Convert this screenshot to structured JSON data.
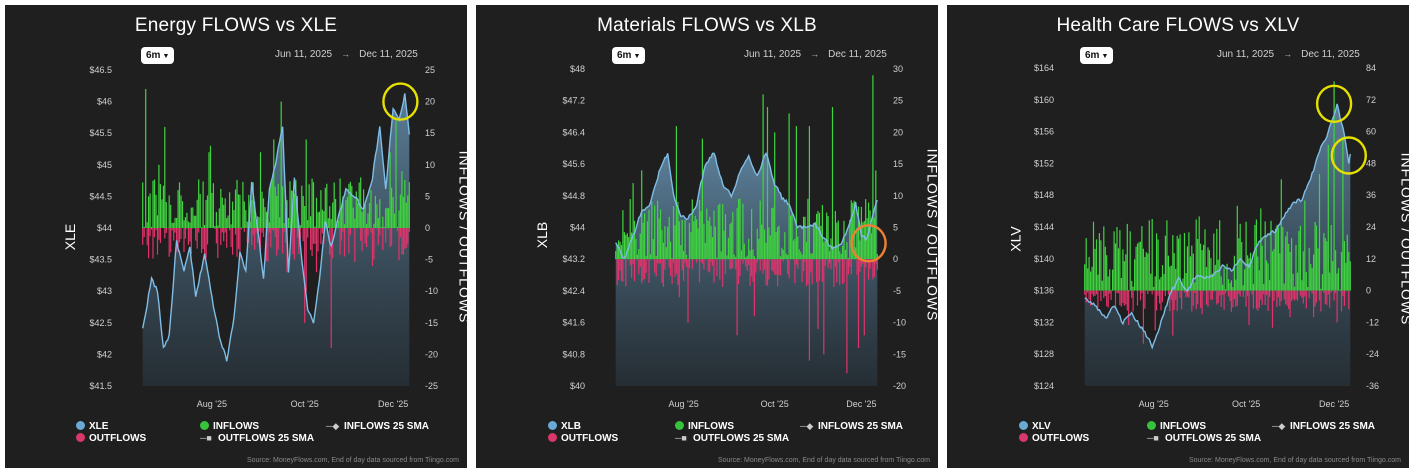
{
  "panels": [
    {
      "title": "Energy FLOWS vs XLE",
      "range_label": "6m",
      "date_start": "Jun 11, 2025",
      "date_end": "Dec 11, 2025",
      "ticker": "XLE",
      "right_axis_title": "INFLOWS / OUTFLOWS",
      "legend": {
        "price": "XLE",
        "outflows": "OUTFLOWS",
        "inflows": "INFLOWS",
        "outflows_sma": "OUTFLOWS 25 SMA",
        "inflows_sma": "INFLOWS 25 SMA"
      },
      "source": "Source: MoneyFlows.com, End of day data sourced from Tiingo.com",
      "highlight_color": "#e6e000",
      "chart_data": {
        "type": "bar+area",
        "title": "Energy FLOWS vs XLE",
        "left_axis": {
          "label": "XLE",
          "range": [
            41.5,
            46.5
          ],
          "ticks": [
            "$41.5",
            "$42",
            "$42.5",
            "$43",
            "$43.5",
            "$44",
            "$44.5",
            "$45",
            "$45.5",
            "$46",
            "$46.5"
          ]
        },
        "right_axis": {
          "label": "INFLOWS / OUTFLOWS",
          "range": [
            -25,
            25
          ],
          "ticks": [
            "-25",
            "-20",
            "-15",
            "-10",
            "-5",
            "0",
            "5",
            "10",
            "15",
            "20",
            "25"
          ]
        },
        "x_ticks": [
          "Aug '25",
          "Oct '25",
          "Dec '25"
        ],
        "x_tick_index": [
          47,
          110,
          170
        ],
        "n_days": 182,
        "price_anchors": [
          [
            0,
            42.4
          ],
          [
            6,
            43.2
          ],
          [
            10,
            43.0
          ],
          [
            14,
            42.1
          ],
          [
            18,
            42.3
          ],
          [
            23,
            43.8
          ],
          [
            28,
            43.3
          ],
          [
            32,
            43.7
          ],
          [
            36,
            42.9
          ],
          [
            42,
            43.6
          ],
          [
            47,
            42.9
          ],
          [
            52,
            42.3
          ],
          [
            57,
            41.9
          ],
          [
            62,
            42.6
          ],
          [
            66,
            43.6
          ],
          [
            70,
            43.3
          ],
          [
            74,
            44.7
          ],
          [
            78,
            44.0
          ],
          [
            82,
            43.2
          ],
          [
            86,
            44.6
          ],
          [
            90,
            45.0
          ],
          [
            95,
            45.6
          ],
          [
            99,
            43.3
          ],
          [
            103,
            44.8
          ],
          [
            108,
            43.5
          ],
          [
            112,
            42.7
          ],
          [
            116,
            42.5
          ],
          [
            120,
            43.2
          ],
          [
            124,
            44.1
          ],
          [
            128,
            43.7
          ],
          [
            132,
            44.1
          ],
          [
            138,
            44.6
          ],
          [
            144,
            44.5
          ],
          [
            150,
            44.3
          ],
          [
            156,
            44.8
          ],
          [
            161,
            45.6
          ],
          [
            165,
            44.6
          ],
          [
            170,
            45.9
          ],
          [
            174,
            45.7
          ],
          [
            178,
            46.1
          ],
          [
            181,
            45.5
          ]
        ],
        "inflow_spikes": [
          [
            2,
            22
          ],
          [
            4,
            5
          ],
          [
            11,
            10
          ],
          [
            15,
            16
          ],
          [
            24,
            6
          ],
          [
            45,
            12
          ],
          [
            46,
            13
          ],
          [
            80,
            12
          ],
          [
            89,
            14
          ],
          [
            94,
            20
          ],
          [
            111,
            14
          ],
          [
            121,
            6
          ],
          [
            140,
            7
          ],
          [
            148,
            8
          ],
          [
            155,
            6
          ],
          [
            168,
            12
          ],
          [
            172,
            17
          ],
          [
            176,
            9
          ]
        ],
        "outflow_spikes": [
          [
            36,
            -2
          ],
          [
            60,
            -3
          ],
          [
            98,
            -7
          ],
          [
            110,
            -15
          ],
          [
            111,
            -10
          ],
          [
            118,
            -7
          ],
          [
            128,
            -19
          ],
          [
            140,
            -4
          ],
          [
            156,
            -6
          ],
          [
            168,
            -3
          ]
        ],
        "highlights": [
          {
            "day": 175,
            "value": 46.0,
            "color": "#e6e000"
          }
        ]
      }
    },
    {
      "title": "Materials FLOWS vs XLB",
      "range_label": "6m",
      "date_start": "Jun 11, 2025",
      "date_end": "Dec 11, 2025",
      "ticker": "XLB",
      "right_axis_title": "INFLOWS / OUTFLOWS",
      "legend": {
        "price": "XLB",
        "outflows": "OUTFLOWS",
        "inflows": "INFLOWS",
        "outflows_sma": "OUTFLOWS 25 SMA",
        "inflows_sma": "INFLOWS 25 SMA"
      },
      "source": "Source: MoneyFlows.com, End of day data sourced from Tiingo.com",
      "highlight_color": "#ee8033",
      "chart_data": {
        "type": "bar+area",
        "title": "Materials FLOWS vs XLB",
        "left_axis": {
          "label": "XLB",
          "range": [
            40,
            48
          ],
          "ticks": [
            "$40",
            "$40.8",
            "$41.6",
            "$42.4",
            "$43.2",
            "$44",
            "$44.8",
            "$45.6",
            "$46.4",
            "$47.2",
            "$48"
          ]
        },
        "right_axis": {
          "label": "INFLOWS / OUTFLOWS",
          "range": [
            -20,
            30
          ],
          "ticks": [
            "-20",
            "-15",
            "-10",
            "-5",
            "0",
            "5",
            "10",
            "15",
            "20",
            "25",
            "30"
          ]
        },
        "x_ticks": [
          "Aug '25",
          "Oct '25",
          "Dec '25"
        ],
        "x_tick_index": [
          47,
          110,
          170
        ],
        "n_days": 182,
        "price_anchors": [
          [
            0,
            43.6
          ],
          [
            6,
            43.2
          ],
          [
            12,
            43.8
          ],
          [
            18,
            44.4
          ],
          [
            24,
            44.6
          ],
          [
            30,
            45.4
          ],
          [
            36,
            45.9
          ],
          [
            40,
            44.8
          ],
          [
            45,
            44.3
          ],
          [
            50,
            44.2
          ],
          [
            56,
            44.6
          ],
          [
            62,
            45.6
          ],
          [
            68,
            45.9
          ],
          [
            74,
            45.1
          ],
          [
            80,
            44.8
          ],
          [
            86,
            45.4
          ],
          [
            92,
            45.8
          ],
          [
            98,
            45.3
          ],
          [
            104,
            45.9
          ],
          [
            110,
            45.1
          ],
          [
            116,
            44.7
          ],
          [
            120,
            44.6
          ],
          [
            126,
            44.0
          ],
          [
            132,
            44.0
          ],
          [
            138,
            44.1
          ],
          [
            144,
            43.7
          ],
          [
            150,
            43.5
          ],
          [
            156,
            43.6
          ],
          [
            162,
            44.1
          ],
          [
            166,
            44.6
          ],
          [
            170,
            43.8
          ],
          [
            174,
            43.7
          ],
          [
            178,
            44.3
          ],
          [
            181,
            44.7
          ]
        ],
        "inflow_spikes": [
          [
            12,
            12
          ],
          [
            18,
            14
          ],
          [
            42,
            21
          ],
          [
            60,
            19
          ],
          [
            102,
            26
          ],
          [
            105,
            24
          ],
          [
            110,
            20
          ],
          [
            120,
            23
          ],
          [
            125,
            21
          ],
          [
            134,
            21
          ],
          [
            150,
            24
          ],
          [
            178,
            29
          ],
          [
            180,
            14
          ]
        ],
        "outflow_spikes": [
          [
            44,
            -6
          ],
          [
            50,
            -10
          ],
          [
            84,
            -12
          ],
          [
            96,
            -9
          ],
          [
            134,
            -16
          ],
          [
            140,
            -11
          ],
          [
            144,
            -15
          ],
          [
            160,
            -18
          ],
          [
            168,
            -14
          ],
          [
            172,
            -12
          ]
        ],
        "highlights": [
          {
            "day": 175,
            "value": 43.6,
            "color": "#ee8033"
          }
        ]
      }
    },
    {
      "title": "Health Care FLOWS vs XLV",
      "range_label": "6m",
      "date_start": "Jun 11, 2025",
      "date_end": "Dec 11, 2025",
      "ticker": "XLV",
      "right_axis_title": "INFLOWS / OUTFLOWS",
      "legend": {
        "price": "XLV",
        "outflows": "OUTFLOWS",
        "inflows": "INFLOWS",
        "outflows_sma": "OUTFLOWS 25 SMA",
        "inflows_sma": "INFLOWS 25 SMA"
      },
      "source": "Source: MoneyFlows.com, End of day data sourced from Tiingo.com",
      "highlight_color": "#e6e000",
      "chart_data": {
        "type": "bar+area",
        "title": "Health Care FLOWS vs XLV",
        "left_axis": {
          "label": "XLV",
          "range": [
            124,
            164
          ],
          "ticks": [
            "$124",
            "$128",
            "$132",
            "$136",
            "$140",
            "$144",
            "$148",
            "$152",
            "$156",
            "$160",
            "$164"
          ]
        },
        "right_axis": {
          "label": "INFLOWS / OUTFLOWS",
          "range": [
            -36,
            84
          ],
          "ticks": [
            "-36",
            "-24",
            "-12",
            "0",
            "12",
            "24",
            "36",
            "48",
            "60",
            "72",
            "84"
          ]
        },
        "x_ticks": [
          "Aug '25",
          "Oct '25",
          "Dec '25"
        ],
        "x_tick_index": [
          47,
          110,
          170
        ],
        "n_days": 182,
        "price_anchors": [
          [
            0,
            135.0
          ],
          [
            8,
            134.0
          ],
          [
            14,
            132.5
          ],
          [
            20,
            134.0
          ],
          [
            26,
            132.0
          ],
          [
            32,
            133.0
          ],
          [
            40,
            131.0
          ],
          [
            46,
            129.0
          ],
          [
            52,
            132.0
          ],
          [
            58,
            135.5
          ],
          [
            64,
            137.5
          ],
          [
            70,
            136.0
          ],
          [
            76,
            138.0
          ],
          [
            82,
            137.5
          ],
          [
            88,
            138.0
          ],
          [
            94,
            139.0
          ],
          [
            100,
            138.5
          ],
          [
            106,
            140.0
          ],
          [
            112,
            139.0
          ],
          [
            118,
            142.0
          ],
          [
            124,
            143.0
          ],
          [
            130,
            143.5
          ],
          [
            136,
            145.5
          ],
          [
            142,
            147.0
          ],
          [
            148,
            147.5
          ],
          [
            154,
            150.0
          ],
          [
            160,
            153.5
          ],
          [
            164,
            155.0
          ],
          [
            168,
            157.0
          ],
          [
            172,
            159.5
          ],
          [
            176,
            156.5
          ],
          [
            180,
            152.0
          ],
          [
            181,
            153.0
          ]
        ],
        "inflow_spikes": [
          [
            6,
            26
          ],
          [
            22,
            24
          ],
          [
            46,
            27
          ],
          [
            78,
            28
          ],
          [
            104,
            32
          ],
          [
            110,
            26
          ],
          [
            120,
            31
          ],
          [
            134,
            42
          ],
          [
            150,
            34
          ],
          [
            160,
            44
          ],
          [
            166,
            55
          ],
          [
            170,
            79
          ],
          [
            176,
            58
          ]
        ],
        "outflow_spikes": [
          [
            30,
            -13
          ],
          [
            40,
            -20
          ],
          [
            48,
            -15
          ],
          [
            60,
            -17
          ],
          [
            80,
            -9
          ],
          [
            100,
            -8
          ],
          [
            112,
            -13
          ],
          [
            128,
            -14
          ],
          [
            140,
            -10
          ],
          [
            156,
            -10
          ],
          [
            172,
            -12
          ],
          [
            180,
            -7
          ]
        ],
        "highlights": [
          {
            "day": 170,
            "value": 159.5,
            "color": "#e6e000"
          },
          {
            "day": 180,
            "value": 153.0,
            "color": "#e6e000"
          }
        ]
      }
    }
  ],
  "colors": {
    "panel_bg": "#1f1f1f",
    "inflow": "#3fd43f",
    "outflow": "#e0336b",
    "price_line": "#7fbde6",
    "axis_text": "#d0d0d0",
    "legend_price_dot": "#6aa9d6",
    "legend_outflow_dot": "#d9386a",
    "legend_inflow_dot": "#36c23a"
  }
}
